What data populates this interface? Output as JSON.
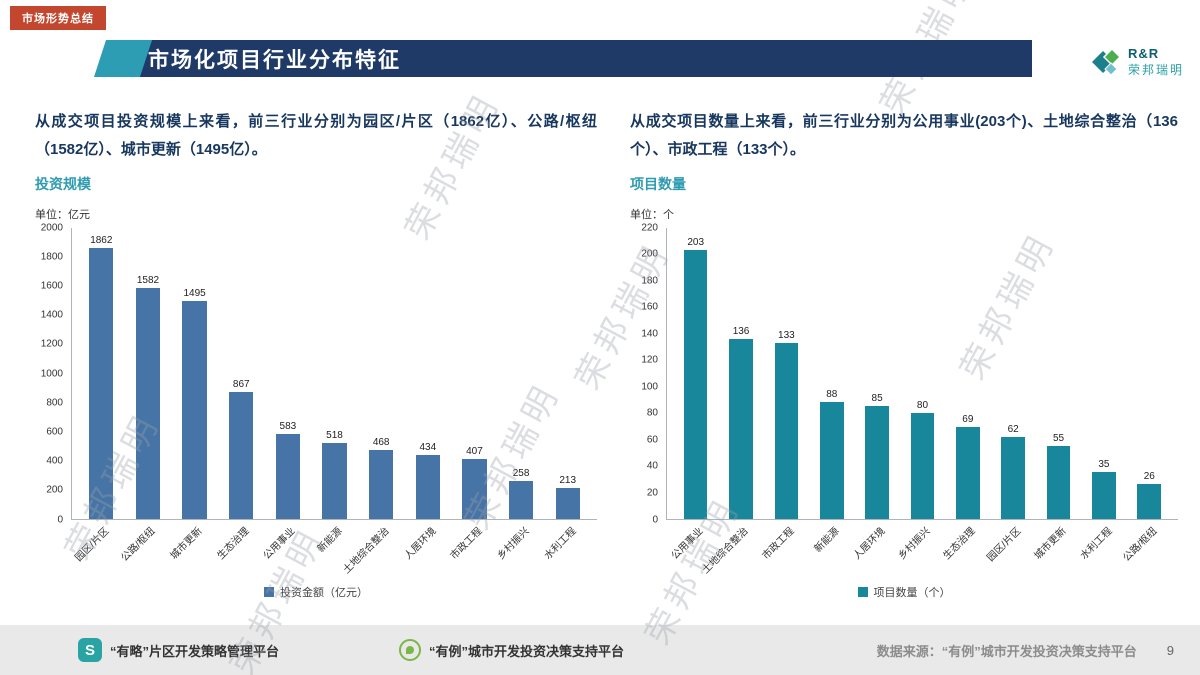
{
  "badge": {
    "label": "市场形势总结"
  },
  "header": {
    "title": "市场化项目行业分布特征"
  },
  "logo": {
    "name_en": "R&R",
    "name_cn": "荣邦瑞明"
  },
  "watermark": {
    "text": "荣邦瑞明"
  },
  "sections": {
    "left": {
      "paragraph": "从成交项目投资规模上来看，前三行业分别为园区/片区（1862亿）、公路/枢纽（1582亿）、城市更新（1495亿）。",
      "chart_title": "投资规模",
      "unit": "单位：亿元"
    },
    "right": {
      "paragraph": "从成交项目数量上来看，前三行业分别为公用事业(203个)、土地综合整治（136个）、市政工程（133个）。",
      "chart_title": "项目数量",
      "unit": "单位：个"
    }
  },
  "chart_data": [
    {
      "type": "bar",
      "title": "投资规模",
      "categories": [
        "园区/片区",
        "公路/枢纽",
        "城市更新",
        "生态治理",
        "公用事业",
        "新能源",
        "土地综合整治",
        "人居环境",
        "市政工程",
        "乡村振兴",
        "水利工程"
      ],
      "values": [
        1862,
        1582,
        1495,
        867,
        583,
        518,
        468,
        434,
        407,
        258,
        213
      ],
      "xlabel": "",
      "ylabel": "单位：亿元",
      "ylim": [
        0,
        2000
      ],
      "ystep": 200,
      "grid": false,
      "legend": "投资金额（亿元）",
      "legend_position": "bottom",
      "bar_color": "#4674A6"
    },
    {
      "type": "bar",
      "title": "项目数量",
      "categories": [
        "公用事业",
        "土地综合整治",
        "市政工程",
        "新能源",
        "人居环境",
        "乡村振兴",
        "生态治理",
        "园区/片区",
        "城市更新",
        "水利工程",
        "公路/枢纽"
      ],
      "values": [
        203,
        136,
        133,
        88,
        85,
        80,
        69,
        62,
        55,
        35,
        26
      ],
      "xlabel": "",
      "ylabel": "单位：个",
      "ylim": [
        0,
        220
      ],
      "ystep": 20,
      "grid": false,
      "legend": "项目数量（个）",
      "legend_position": "bottom",
      "bar_color": "#19879B"
    }
  ],
  "footer": {
    "platform1_letter": "S",
    "platform1": "“有略”片区开发策略管理平台",
    "platform2": "“有例”城市开发投资决策支持平台",
    "source": "数据来源：“有例”城市开发投资决策支持平台",
    "page": "9"
  }
}
